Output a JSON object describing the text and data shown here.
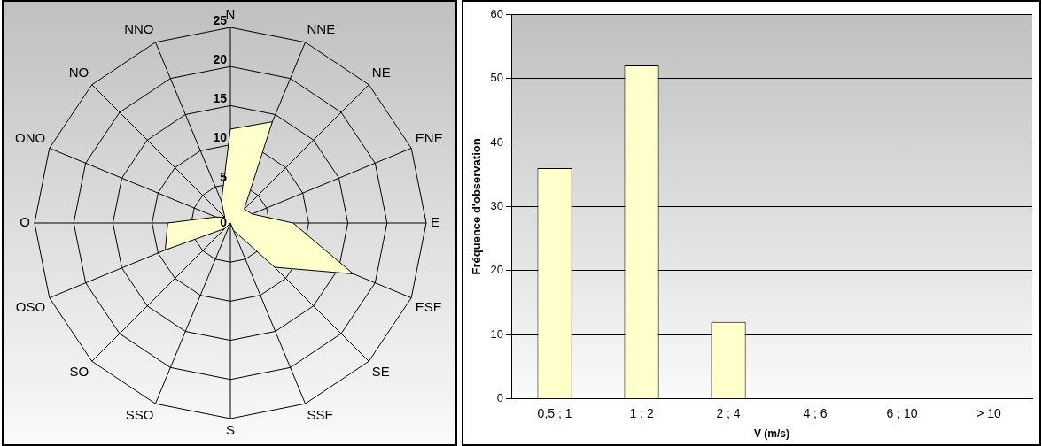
{
  "chart_data": [
    {
      "type": "radar",
      "categories": [
        "N",
        "NNE",
        "NE",
        "ENE",
        "E",
        "ESE",
        "SE",
        "SSE",
        "S",
        "SSO",
        "SO",
        "OSO",
        "O",
        "ONO",
        "NO",
        "NNO"
      ],
      "series": [
        {
          "color": "#ffffcc",
          "values": [
            12,
            14,
            2.5,
            3,
            8,
            17,
            8,
            1,
            0,
            0,
            1,
            9,
            8,
            2,
            1,
            3
          ]
        }
      ],
      "ylim": [
        0,
        25
      ],
      "yticks": [
        0,
        5,
        10,
        15,
        20,
        25
      ],
      "grid": true,
      "legend": false
    },
    {
      "type": "bar",
      "categories": [
        "0,5 ; 1",
        "1 ; 2",
        "2 ; 4",
        "4 ; 6",
        "6 ; 10",
        "> 10"
      ],
      "series": [
        {
          "color": "#ffffcc",
          "values": [
            36,
            52,
            12,
            0,
            0,
            0
          ]
        }
      ],
      "ylim": [
        0,
        60
      ],
      "yticks": [
        0,
        10,
        20,
        30,
        40,
        50,
        60
      ],
      "grid": "y",
      "legend": false,
      "xlabel": "V (m/s)",
      "ylabel": "Fréquence d'observation"
    }
  ]
}
